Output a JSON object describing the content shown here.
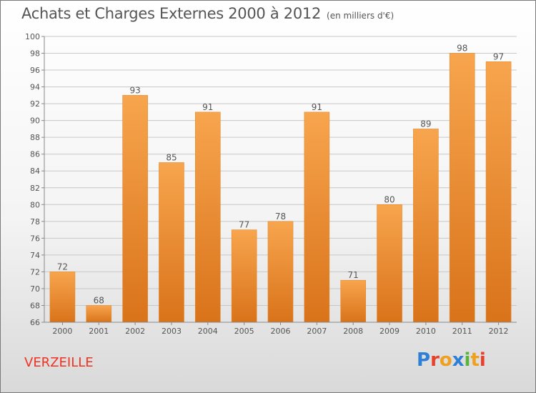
{
  "header": {
    "title": "Achats et Charges Externes 2000 à 2012",
    "unit": "(en milliers d'€)"
  },
  "footer": {
    "commune": "VERZEILLE",
    "logo_text": "Proxiti",
    "logo_colors": [
      "#2e7fd6",
      "#e8402a",
      "#f0a020",
      "#2e7fd6",
      "#5ab33c",
      "#f0a020",
      "#e8402a"
    ]
  },
  "chart_data": {
    "type": "bar",
    "categories": [
      "2000",
      "2001",
      "2002",
      "2003",
      "2004",
      "2005",
      "2006",
      "2007",
      "2008",
      "2009",
      "2010",
      "2011",
      "2012"
    ],
    "values": [
      72,
      68,
      93,
      85,
      91,
      77,
      78,
      91,
      71,
      80,
      89,
      98,
      97
    ],
    "ylim": [
      66,
      100
    ],
    "yticks": [
      66,
      68,
      70,
      72,
      74,
      76,
      78,
      80,
      82,
      84,
      86,
      88,
      90,
      92,
      94,
      96,
      98,
      100
    ],
    "grid": true,
    "bar_color": "#f0922e"
  }
}
